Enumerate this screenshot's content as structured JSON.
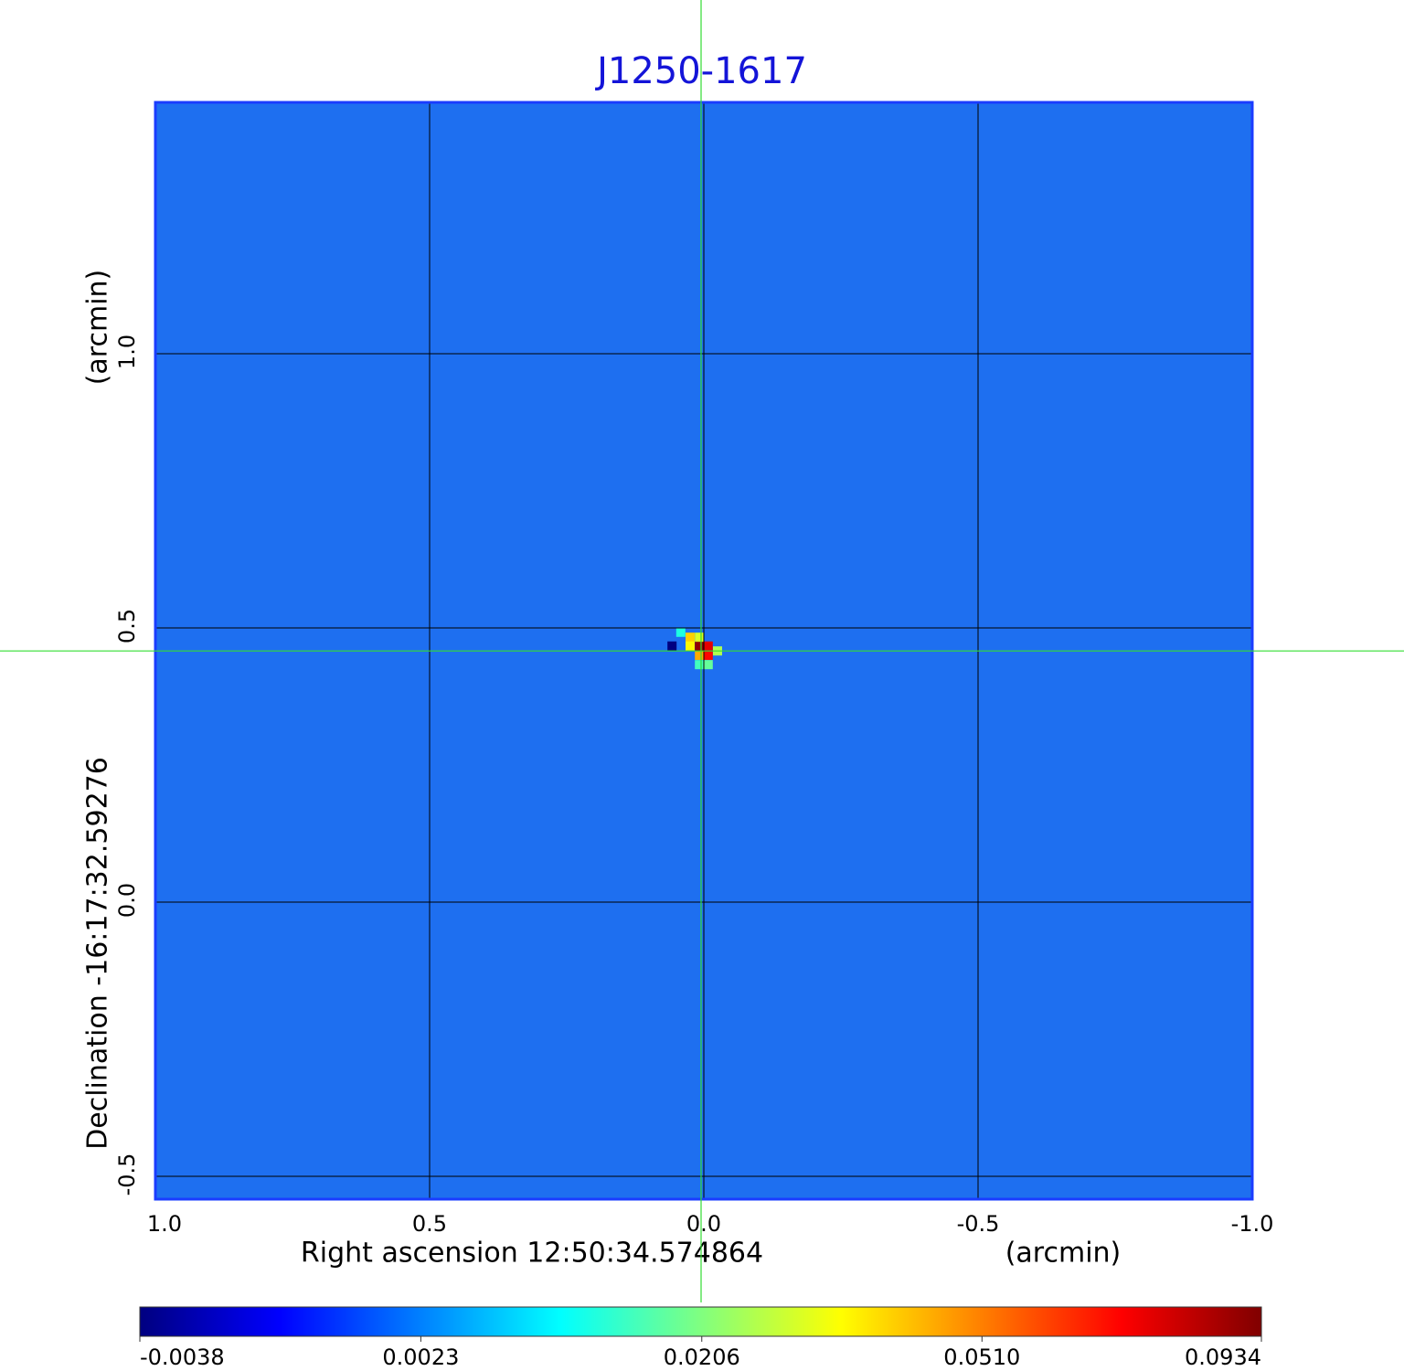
{
  "chart_data": {
    "type": "image",
    "title": "J1250-1617",
    "xlabel": "Right ascension  12:50:34.574864",
    "xunit": "(arcmin)",
    "ylabel": "Declination  -16:17:32.59276",
    "yunit": "(arcmin)",
    "xlim": [
      1.0,
      -1.0
    ],
    "ylim": [
      -0.5417,
      1.4583
    ],
    "xticks": [
      {
        "value": 1,
        "label": "1.0"
      },
      {
        "value": 0.5,
        "label": "0.5"
      },
      {
        "value": 0,
        "label": "0.0"
      },
      {
        "value": -0.5,
        "label": "-0.5"
      },
      {
        "value": -1,
        "label": "-1.0"
      }
    ],
    "yticks": [
      {
        "value": -0.5,
        "label": "-0.5"
      },
      {
        "value": 0,
        "label": "0.0"
      },
      {
        "value": 0.5,
        "label": "0.5"
      },
      {
        "value": 1,
        "label": "1.0"
      }
    ],
    "grid": true,
    "colormap": "jet",
    "color_stretch": "sqrt",
    "clim": [
      -0.0038,
      0.0934
    ],
    "cticks": [
      {
        "value": -0.0038,
        "label": "-0.0038"
      },
      {
        "value": 0.0023,
        "label": "0.0023"
      },
      {
        "value": 0.0206,
        "label": "0.0206"
      },
      {
        "value": 0.051,
        "label": "0.0510"
      },
      {
        "value": 0.0934,
        "label": "0.0934"
      }
    ],
    "pixels": {
      "x": [
        0.008,
        -0.008,
        -0.008,
        0.008,
        0.025,
        0.025,
        -0.025,
        0.058,
        0.042,
        0.008,
        -0.008,
        0.008
      ],
      "y": [
        0.467,
        0.467,
        0.45,
        0.45,
        0.483,
        0.467,
        0.458,
        0.467,
        0.492,
        0.433,
        0.433,
        0.483
      ],
      "values": [
        0.09,
        0.075,
        0.07,
        0.045,
        0.04,
        0.035,
        0.025,
        -0.0038,
        0.012,
        0.015,
        0.018,
        0.03
      ]
    },
    "crosshair": {
      "x": 0.005,
      "y": 0.458
    }
  }
}
